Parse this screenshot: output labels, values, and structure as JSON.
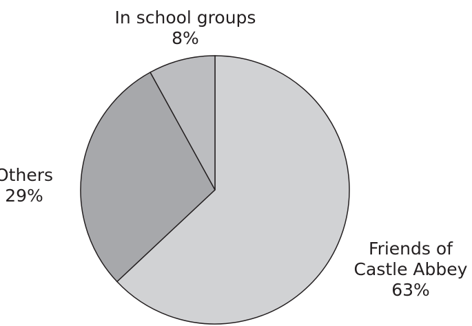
{
  "chart_data": {
    "type": "pie",
    "title": "",
    "start_angle_deg": 0,
    "direction": "clockwise",
    "slices": [
      {
        "label_lines": [
          "Friends of",
          "Castle Abbey"
        ],
        "value_label": "63%",
        "value": 63,
        "color": "#d1d2d4"
      },
      {
        "label_lines": [
          "Others"
        ],
        "value_label": "29%",
        "value": 29,
        "color": "#a7a8ab"
      },
      {
        "label_lines": [
          "In school groups"
        ],
        "value_label": "8%",
        "value": 8,
        "color": "#bcbdc0"
      }
    ],
    "outline_color": "#231f20",
    "text_color": "#231f20"
  }
}
